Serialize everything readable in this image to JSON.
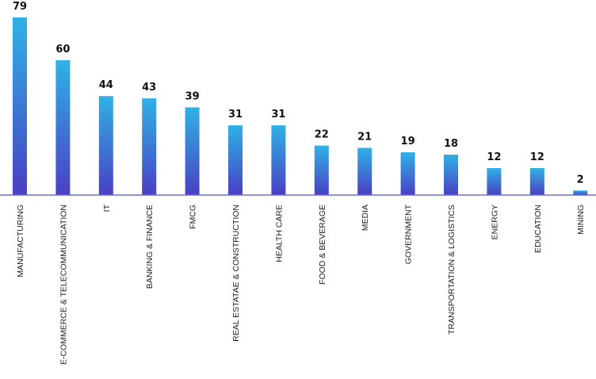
{
  "chart_data": {
    "type": "bar",
    "categories": [
      "MANUFACTURING",
      "E-COMMERCE & TELECOMMUNICATION",
      "IT",
      "BANKING & FINANCE",
      "FMCG",
      "REAL ESTATAE & CONSTRUCTION",
      "HEALTH CARE",
      "FOOD & BEVERAGE",
      "MEDIA",
      "GOVERNMENT",
      "TRANSPORTATION & LOGISTICS",
      "ENERGY",
      "EDUCATION",
      "MINING"
    ],
    "values": [
      79,
      60,
      44,
      43,
      39,
      31,
      31,
      22,
      21,
      19,
      18,
      12,
      12,
      2
    ],
    "title": "",
    "xlabel": "",
    "ylabel": "",
    "ylim": [
      0,
      80
    ],
    "grid": false,
    "legend": "none",
    "colors": {
      "bar_top": "#2fb2e6",
      "bar_bottom": "#4a3fc4",
      "axis": "#6a6fd0",
      "label": "#111111"
    }
  }
}
